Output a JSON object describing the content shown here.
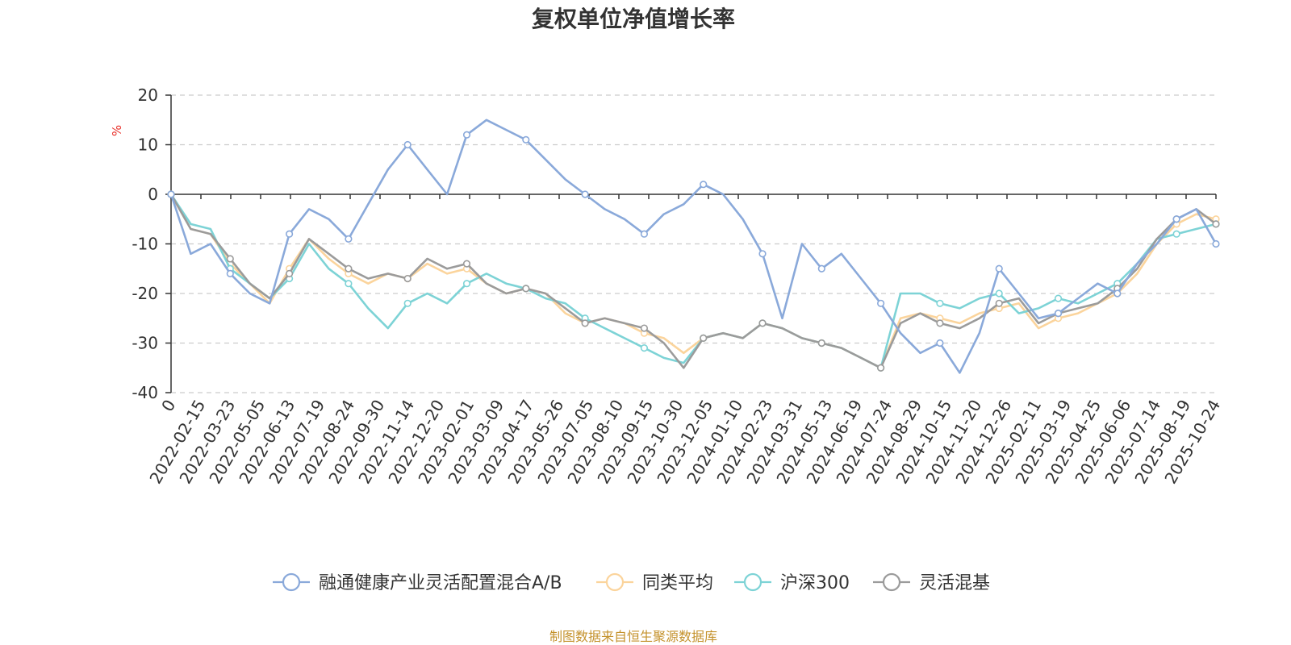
{
  "chart_data": {
    "type": "line",
    "title": "复权单位净值增长率",
    "ylabel": "%",
    "ylim": [
      -40,
      20
    ],
    "yticks": [
      20,
      10,
      0,
      -10,
      -20,
      -30,
      -40
    ],
    "grid": true,
    "legend_position": "bottom",
    "x_tick_labels": [
      "0",
      "2022-02-15",
      "2022-03-23",
      "2022-05-05",
      "2022-06-13",
      "2022-07-19",
      "2022-08-24",
      "2022-09-30",
      "2022-11-14",
      "2022-12-20",
      "2023-02-01",
      "2023-03-09",
      "2023-04-17",
      "2023-05-26",
      "2023-07-05",
      "2023-08-10",
      "2023-09-15",
      "2023-10-30",
      "2023-12-05",
      "2024-01-10",
      "2024-02-23",
      "2024-03-31",
      "2024-05-13",
      "2024-06-19",
      "2024-07-24",
      "2024-08-29",
      "2024-10-15",
      "2024-11-20",
      "2024-12-26",
      "2025-02-11",
      "2025-03-19",
      "2025-04-25",
      "2025-06-06",
      "2025-07-14",
      "2025-08-19",
      "2025-10-24"
    ],
    "series": [
      {
        "name": "融通健康产业灵活配置混合A/B",
        "color": "#8aa9da",
        "values": [
          0,
          -12,
          -10,
          -16,
          -20,
          -22,
          -8,
          -3,
          -5,
          -9,
          -2,
          5,
          10,
          5,
          0,
          12,
          15,
          13,
          11,
          7,
          3,
          0,
          -3,
          -5,
          -8,
          -4,
          -2,
          2,
          0,
          -5,
          -12,
          -25,
          -10,
          -15,
          -12,
          -17,
          -22,
          -28,
          -32,
          -30,
          -36,
          -28,
          -15,
          -20,
          -25,
          -24,
          -21,
          -18,
          -20,
          -14,
          -10,
          -5,
          -3,
          -10
        ]
      },
      {
        "name": "同类平均",
        "color": "#fbd49c",
        "values": [
          0,
          -7,
          -8,
          -14,
          -18,
          -22,
          -15,
          -9,
          -13,
          -16,
          -18,
          -16,
          -17,
          -14,
          -16,
          -15,
          -18,
          -20,
          -19,
          -20,
          -24,
          -26,
          -25,
          -26,
          -28,
          -29,
          -32,
          -29,
          -28,
          -29,
          -26,
          -27,
          -29,
          -30,
          -31,
          -33,
          -35,
          -25,
          -24,
          -25,
          -26,
          -24,
          -23,
          -22,
          -27,
          -25,
          -24,
          -22,
          -20,
          -16,
          -10,
          -6,
          -4,
          -5
        ]
      },
      {
        "name": "沪深300",
        "color": "#7dd3d6",
        "values": [
          0,
          -6,
          -7,
          -15,
          -18,
          -21,
          -17,
          -10,
          -15,
          -18,
          -23,
          -27,
          -22,
          -20,
          -22,
          -18,
          -16,
          -18,
          -19,
          -21,
          -22,
          -25,
          -27,
          -29,
          -31,
          -33,
          -34,
          -29,
          -28,
          -29,
          -26,
          -27,
          -29,
          -30,
          -31,
          -33,
          -35,
          -20,
          -20,
          -22,
          -23,
          -21,
          -20,
          -24,
          -23,
          -21,
          -22,
          -20,
          -18,
          -14,
          -9,
          -8,
          -7,
          -6
        ]
      },
      {
        "name": "灵活混基",
        "color": "#9b9b9b",
        "values": [
          0,
          -7,
          -8,
          -13,
          -18,
          -21,
          -16,
          -9,
          -12,
          -15,
          -17,
          -16,
          -17,
          -13,
          -15,
          -14,
          -18,
          -20,
          -19,
          -20,
          -23,
          -26,
          -25,
          -26,
          -27,
          -30,
          -35,
          -29,
          -28,
          -29,
          -26,
          -27,
          -29,
          -30,
          -31,
          -33,
          -35,
          -26,
          -24,
          -26,
          -27,
          -25,
          -22,
          -21,
          -26,
          -24,
          -23,
          -22,
          -19,
          -15,
          -9,
          -5,
          -3,
          -6
        ]
      }
    ]
  },
  "source_note": "制图数据来自恒生聚源数据库"
}
